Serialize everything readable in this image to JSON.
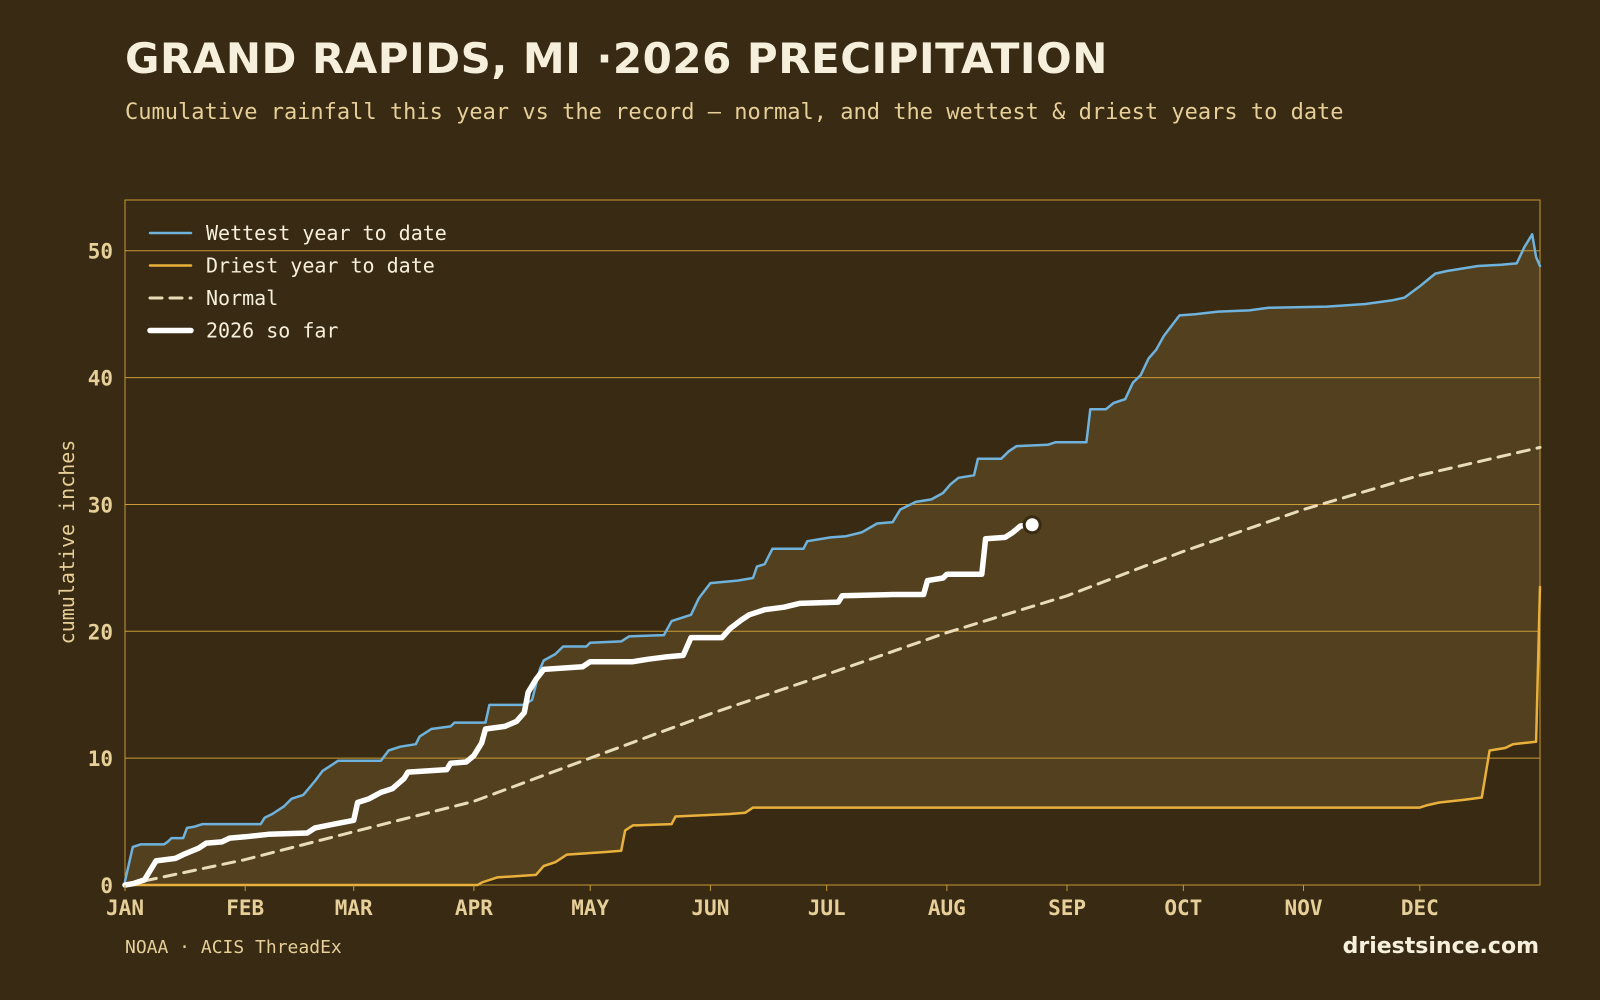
{
  "title": "GRAND RAPIDS, MI ·2026 PRECIPITATION",
  "subtitle": "Cumulative rainfall this year vs the record — normal, and the wettest & driest years to date",
  "source": "NOAA · ACIS ThreadEx",
  "brand": "driestsince.com",
  "colors": {
    "background": "#382a13",
    "band": "#53401f",
    "grid": "#c99a35",
    "wettest": "#6fb2dc",
    "driest": "#e9b13b",
    "normal": "#e9dcb8",
    "current": "#ffffff"
  },
  "chart_data": {
    "type": "line",
    "title": "GRAND RAPIDS, MI ·2026 PRECIPITATION",
    "ylabel": "cumulative inches",
    "xlabel": "",
    "ylim": [
      0,
      54
    ],
    "xlim": [
      0,
      365
    ],
    "grid": true,
    "legend_position": "top-left",
    "y_ticks": [
      0,
      10,
      20,
      30,
      40,
      50
    ],
    "months": [
      "JAN",
      "FEB",
      "MAR",
      "APR",
      "MAY",
      "JUN",
      "JUL",
      "AUG",
      "SEP",
      "OCT",
      "NOV",
      "DEC"
    ],
    "month_start_days": [
      0,
      31,
      59,
      90,
      120,
      151,
      181,
      212,
      243,
      273,
      304,
      334
    ],
    "series": [
      {
        "name": "Wettest year to date",
        "style": "solid",
        "points": [
          [
            0,
            0.3
          ],
          [
            2,
            3.0
          ],
          [
            4,
            3.2
          ],
          [
            10,
            3.2
          ],
          [
            11,
            3.4
          ],
          [
            12,
            3.7
          ],
          [
            15,
            3.7
          ],
          [
            16,
            4.5
          ],
          [
            18,
            4.6
          ],
          [
            20,
            4.8
          ],
          [
            35,
            4.8
          ],
          [
            36,
            5.3
          ],
          [
            38,
            5.6
          ],
          [
            41,
            6.2
          ],
          [
            43,
            6.8
          ],
          [
            46,
            7.1
          ],
          [
            49,
            8.2
          ],
          [
            51,
            9.0
          ],
          [
            53,
            9.4
          ],
          [
            55,
            9.8
          ],
          [
            66,
            9.8
          ],
          [
            68,
            10.6
          ],
          [
            71,
            10.9
          ],
          [
            75,
            11.1
          ],
          [
            76,
            11.7
          ],
          [
            79,
            12.3
          ],
          [
            84,
            12.5
          ],
          [
            85,
            12.8
          ],
          [
            93,
            12.8
          ],
          [
            94,
            14.2
          ],
          [
            103,
            14.2
          ],
          [
            105,
            14.6
          ],
          [
            107,
            17.0
          ],
          [
            108,
            17.7
          ],
          [
            111,
            18.2
          ],
          [
            113,
            18.8
          ],
          [
            119,
            18.8
          ],
          [
            120,
            19.1
          ],
          [
            128,
            19.2
          ],
          [
            130,
            19.6
          ],
          [
            139,
            19.7
          ],
          [
            141,
            20.8
          ],
          [
            146,
            21.3
          ],
          [
            148,
            22.6
          ],
          [
            151,
            23.8
          ],
          [
            158,
            24.0
          ],
          [
            162,
            24.2
          ],
          [
            163,
            25.1
          ],
          [
            165,
            25.3
          ],
          [
            167,
            26.5
          ],
          [
            175,
            26.5
          ],
          [
            176,
            27.1
          ],
          [
            182,
            27.4
          ],
          [
            186,
            27.5
          ],
          [
            190,
            27.8
          ],
          [
            194,
            28.5
          ],
          [
            198,
            28.6
          ],
          [
            200,
            29.6
          ],
          [
            204,
            30.2
          ],
          [
            208,
            30.4
          ],
          [
            211,
            30.9
          ],
          [
            213,
            31.6
          ],
          [
            215,
            32.1
          ],
          [
            219,
            32.3
          ],
          [
            220,
            33.6
          ],
          [
            226,
            33.6
          ],
          [
            228,
            34.2
          ],
          [
            230,
            34.6
          ],
          [
            238,
            34.7
          ],
          [
            240,
            34.9
          ],
          [
            248,
            34.9
          ],
          [
            249,
            37.5
          ],
          [
            253,
            37.5
          ],
          [
            255,
            38.0
          ],
          [
            258,
            38.3
          ],
          [
            260,
            39.6
          ],
          [
            262,
            40.2
          ],
          [
            264,
            41.5
          ],
          [
            266,
            42.2
          ],
          [
            268,
            43.3
          ],
          [
            270,
            44.1
          ],
          [
            272,
            44.9
          ],
          [
            276,
            45.0
          ],
          [
            282,
            45.2
          ],
          [
            290,
            45.3
          ],
          [
            295,
            45.5
          ],
          [
            310,
            45.6
          ],
          [
            320,
            45.8
          ],
          [
            327,
            46.1
          ],
          [
            330,
            46.3
          ],
          [
            334,
            47.2
          ],
          [
            336,
            47.7
          ],
          [
            338,
            48.2
          ],
          [
            341,
            48.4
          ],
          [
            345,
            48.6
          ],
          [
            349,
            48.8
          ],
          [
            355,
            48.9
          ],
          [
            359,
            49.0
          ],
          [
            361,
            50.3
          ],
          [
            363,
            51.3
          ],
          [
            364,
            49.5
          ],
          [
            365,
            48.8
          ]
        ]
      },
      {
        "name": "Driest year to date",
        "style": "solid",
        "points": [
          [
            0,
            0
          ],
          [
            91,
            0
          ],
          [
            92,
            0.2
          ],
          [
            96,
            0.6
          ],
          [
            106,
            0.8
          ],
          [
            108,
            1.5
          ],
          [
            111,
            1.8
          ],
          [
            114,
            2.4
          ],
          [
            124,
            2.6
          ],
          [
            128,
            2.7
          ],
          [
            129,
            4.3
          ],
          [
            131,
            4.7
          ],
          [
            141,
            4.8
          ],
          [
            142,
            5.4
          ],
          [
            156,
            5.6
          ],
          [
            160,
            5.7
          ],
          [
            162,
            6.1
          ],
          [
            175,
            6.1
          ],
          [
            334,
            6.1
          ],
          [
            336,
            6.3
          ],
          [
            339,
            6.5
          ],
          [
            345,
            6.7
          ],
          [
            350,
            6.9
          ],
          [
            352,
            10.6
          ],
          [
            356,
            10.8
          ],
          [
            358,
            11.1
          ],
          [
            364,
            11.3
          ],
          [
            365,
            23.5
          ]
        ]
      },
      {
        "name": "Normal",
        "style": "dashed",
        "points": [
          [
            0,
            0
          ],
          [
            31,
            2.0
          ],
          [
            59,
            4.2
          ],
          [
            90,
            6.6
          ],
          [
            120,
            10.0
          ],
          [
            151,
            13.5
          ],
          [
            181,
            16.6
          ],
          [
            212,
            19.9
          ],
          [
            243,
            22.8
          ],
          [
            273,
            26.3
          ],
          [
            304,
            29.6
          ],
          [
            334,
            32.3
          ],
          [
            365,
            34.5
          ]
        ]
      },
      {
        "name": "2026 so far",
        "style": "thick",
        "points": [
          [
            0,
            0
          ],
          [
            2,
            0.1
          ],
          [
            5,
            0.4
          ],
          [
            8,
            1.9
          ],
          [
            13,
            2.1
          ],
          [
            15,
            2.4
          ],
          [
            19,
            2.9
          ],
          [
            21,
            3.3
          ],
          [
            25,
            3.4
          ],
          [
            27,
            3.7
          ],
          [
            31,
            3.8
          ],
          [
            37,
            4.0
          ],
          [
            47,
            4.1
          ],
          [
            49,
            4.5
          ],
          [
            54,
            4.8
          ],
          [
            59,
            5.1
          ],
          [
            60,
            6.5
          ],
          [
            63,
            6.8
          ],
          [
            66,
            7.3
          ],
          [
            69,
            7.6
          ],
          [
            72,
            8.4
          ],
          [
            73,
            8.9
          ],
          [
            83,
            9.1
          ],
          [
            84,
            9.6
          ],
          [
            88,
            9.7
          ],
          [
            90,
            10.2
          ],
          [
            92,
            11.2
          ],
          [
            93,
            12.3
          ],
          [
            98,
            12.5
          ],
          [
            101,
            12.9
          ],
          [
            103,
            13.6
          ],
          [
            104,
            15.2
          ],
          [
            106,
            16.2
          ],
          [
            108,
            17.0
          ],
          [
            118,
            17.2
          ],
          [
            120,
            17.6
          ],
          [
            131,
            17.6
          ],
          [
            135,
            17.8
          ],
          [
            140,
            18.0
          ],
          [
            144,
            18.1
          ],
          [
            146,
            19.5
          ],
          [
            154,
            19.5
          ],
          [
            156,
            20.2
          ],
          [
            159,
            20.9
          ],
          [
            161,
            21.3
          ],
          [
            165,
            21.7
          ],
          [
            170,
            21.9
          ],
          [
            174,
            22.2
          ],
          [
            184,
            22.3
          ],
          [
            185,
            22.8
          ],
          [
            198,
            22.9
          ],
          [
            206,
            22.9
          ],
          [
            207,
            24.0
          ],
          [
            211,
            24.2
          ],
          [
            212,
            24.5
          ],
          [
            221,
            24.5
          ],
          [
            222,
            27.3
          ],
          [
            227,
            27.4
          ],
          [
            229,
            27.8
          ],
          [
            231,
            28.3
          ],
          [
            234,
            28.4
          ]
        ]
      }
    ],
    "current_marker": {
      "x": 234,
      "y": 28.4
    }
  }
}
